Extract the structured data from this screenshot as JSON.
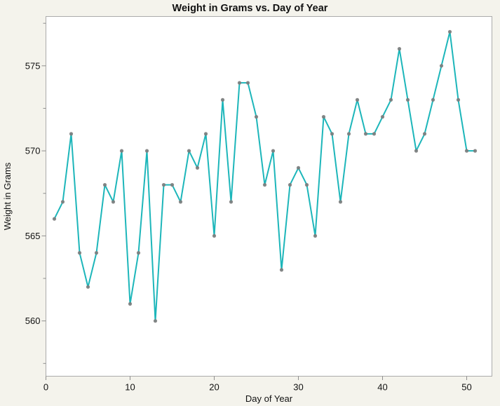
{
  "chart_data": {
    "type": "line",
    "title": "Weight in Grams vs. Day of Year",
    "xlabel": "Day of Year",
    "ylabel": "Weight in Grams",
    "x": [
      1,
      2,
      3,
      4,
      5,
      6,
      7,
      8,
      9,
      10,
      11,
      12,
      13,
      14,
      15,
      16,
      17,
      18,
      19,
      20,
      21,
      22,
      23,
      24,
      25,
      26,
      27,
      28,
      29,
      30,
      31,
      32,
      33,
      34,
      35,
      36,
      37,
      38,
      39,
      40,
      41,
      42,
      43,
      44,
      45,
      46,
      47,
      48,
      49,
      50,
      51
    ],
    "y": [
      566,
      567,
      571,
      564,
      562,
      564,
      568,
      567,
      570,
      561,
      564,
      570,
      560,
      568,
      568,
      567,
      570,
      569,
      571,
      565,
      573,
      567,
      574,
      574,
      572,
      568,
      570,
      563,
      568,
      569,
      568,
      565,
      572,
      571,
      567,
      571,
      573,
      571,
      571,
      572,
      573,
      576,
      573,
      570,
      571,
      573,
      575,
      577,
      573,
      570,
      570
    ],
    "xticks": [
      0,
      10,
      20,
      30,
      40,
      50
    ],
    "yticks": [
      560,
      565,
      570,
      575
    ],
    "y_minor_ticks": [
      557.5,
      562.5,
      567.5,
      572.5,
      577.5
    ],
    "xlim": [
      0,
      53
    ],
    "ylim": [
      556.75,
      577.9
    ],
    "grid": false,
    "legend_position": "none",
    "line_color": "#1db6ba",
    "marker_color": "#7c7c7c",
    "background_color": "#f4f3ec",
    "plot_background": "#ffffff",
    "border_color": "#ababab",
    "tick_color": "#8f8f8f"
  }
}
